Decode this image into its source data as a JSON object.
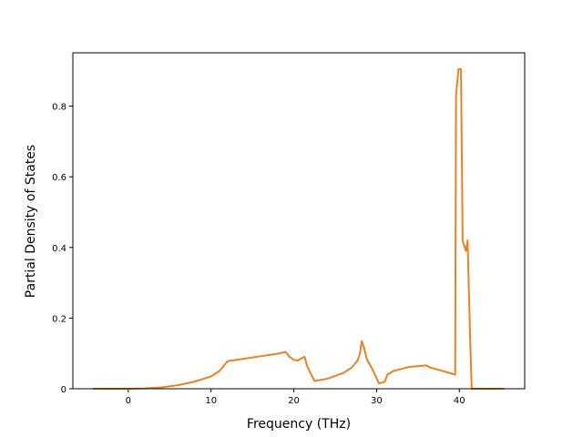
{
  "chart_data": {
    "type": "line",
    "x_label": "Frequency (THz)",
    "y_label": "Partial Density of States",
    "x": [
      -4.3,
      0,
      2,
      4,
      6,
      8,
      10,
      11,
      12,
      14,
      16,
      18,
      19,
      19.5,
      20,
      20.5,
      21,
      21.3,
      21.6,
      22,
      22.5,
      24,
      26,
      27,
      27.7,
      28,
      28.2,
      28.5,
      28.8,
      29.5,
      30.3,
      31,
      31.3,
      32,
      34,
      36,
      36.5,
      38,
      39.5,
      39.6,
      39.9,
      40.2,
      40.4,
      40.8,
      41,
      41.3,
      41.5,
      45.4
    ],
    "series": [
      {
        "color": "#e8822a",
        "values": [
          0,
          0,
          0.001,
          0.004,
          0.01,
          0.02,
          0.035,
          0.05,
          0.078,
          0.085,
          0.092,
          0.099,
          0.104,
          0.09,
          0.082,
          0.08,
          0.087,
          0.09,
          0.065,
          0.045,
          0.022,
          0.028,
          0.045,
          0.06,
          0.08,
          0.1,
          0.135,
          0.115,
          0.085,
          0.055,
          0.015,
          0.02,
          0.04,
          0.05,
          0.062,
          0.066,
          0.06,
          0.05,
          0.04,
          0.83,
          0.905,
          0.905,
          0.42,
          0.39,
          0.42,
          0.15,
          0,
          0
        ]
      }
    ],
    "xlim": [
      -6.7,
      47.9
    ],
    "ylim": [
      0,
      0.951
    ],
    "xticks": [
      0,
      10,
      20,
      30,
      40
    ],
    "yticks": [
      0.0,
      0.2,
      0.4,
      0.6,
      0.8
    ]
  }
}
